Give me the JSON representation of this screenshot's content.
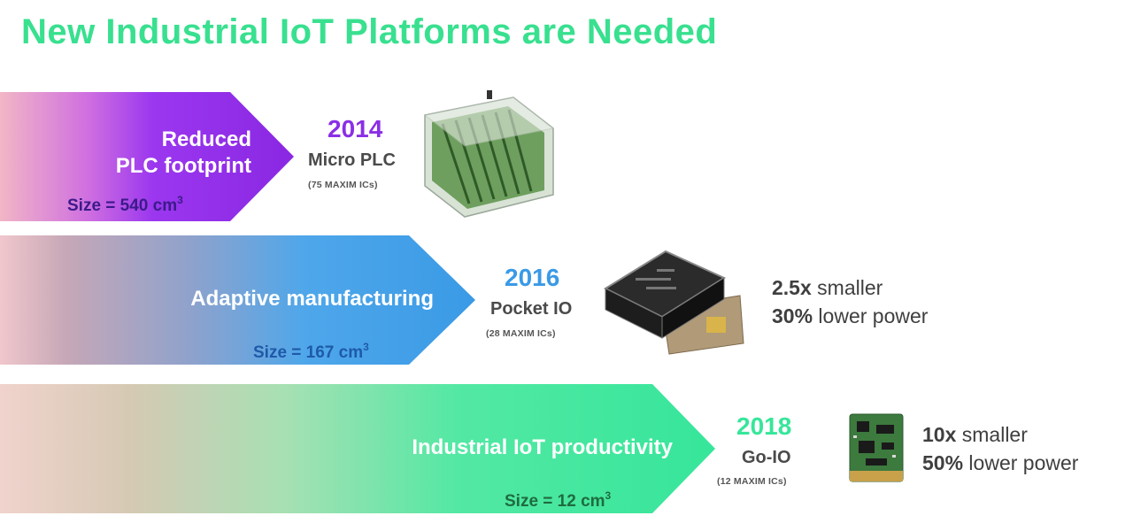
{
  "title": "New Industrial IoT Platforms are Needed",
  "colors": {
    "title": "#38e08f",
    "purple": "#8b2fe6",
    "blue": "#3a9ae6",
    "green": "#36e69a",
    "size_text_1": "#3b1a8a",
    "size_text_2": "#1e5aa8",
    "size_text_3": "#1f6b3f"
  },
  "rows": [
    {
      "label_lines": [
        "Reduced",
        "PLC footprint"
      ],
      "size_prefix": "Size = 540 cm",
      "size_sup": "3",
      "year": "2014",
      "product": "Micro PLC",
      "ics": "(75 MAXIM ICs)",
      "device_icon": "micro-plc-board-icon",
      "stats": []
    },
    {
      "label_lines": [
        "Adaptive manufacturing"
      ],
      "size_prefix": "Size = 167 cm",
      "size_sup": "3",
      "year": "2016",
      "product": "Pocket IO",
      "ics": "(28 MAXIM ICs)",
      "device_icon": "pocket-io-box-icon",
      "stats": [
        {
          "bold": "2.5x",
          "rest": " smaller"
        },
        {
          "bold": "30%",
          "rest": " lower power"
        }
      ]
    },
    {
      "label_lines": [
        "Industrial IoT productivity"
      ],
      "size_prefix": "Size = 12 cm",
      "size_sup": "3",
      "year": "2018",
      "product": "Go-IO",
      "ics": "(12 MAXIM ICs)",
      "device_icon": "go-io-board-icon",
      "stats": [
        {
          "bold": "10x",
          "rest": " smaller"
        },
        {
          "bold": "50%",
          "rest": " lower power"
        }
      ]
    }
  ]
}
